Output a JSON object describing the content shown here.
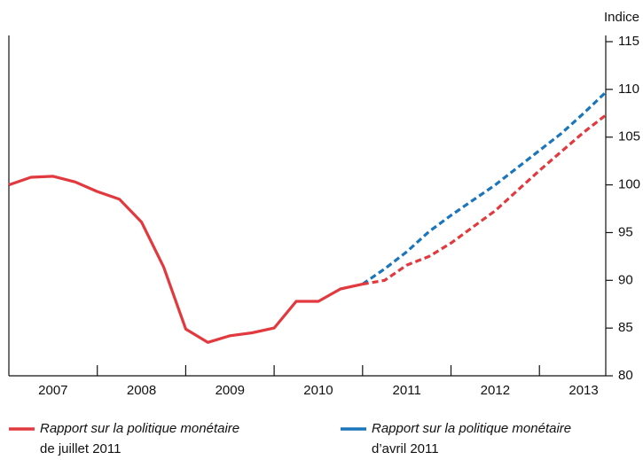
{
  "chart_data": {
    "type": "line",
    "y_axis_label": "Indice",
    "x": [
      2007,
      2007.25,
      2007.5,
      2007.75,
      2008,
      2008.25,
      2008.5,
      2008.75,
      2009,
      2009.25,
      2009.5,
      2009.75,
      2010,
      2010.25,
      2010.5,
      2010.75,
      2011,
      2011.25,
      2011.5,
      2011.75,
      2012,
      2012.25,
      2012.5,
      2012.75,
      2013,
      2013.25,
      2013.5,
      2013.75
    ],
    "xlim": [
      2007,
      2013.75
    ],
    "xticks": [
      2008,
      2009,
      2010,
      2011,
      2012,
      2013
    ],
    "x_period_labels": [
      "2007",
      "2008",
      "2009",
      "2010",
      "2011",
      "2012",
      "2013"
    ],
    "ylim": [
      80,
      115
    ],
    "yticks": [
      80,
      85,
      90,
      95,
      100,
      105,
      110,
      115
    ],
    "y_axis_side": "right",
    "series": [
      {
        "name": {
          "publication": "Rapport sur la politique monétaire",
          "edition": "de juillet 2011"
        },
        "color": "#e1393e",
        "dashed_from": 2011,
        "values": [
          100,
          100.8,
          100.9,
          100.3,
          99.3,
          98.5,
          96.1,
          91.4,
          84.9,
          83.5,
          84.2,
          84.5,
          85.0,
          87.8,
          87.8,
          89.1,
          89.6,
          90.0,
          91.6,
          92.5,
          93.9,
          95.6,
          97.3,
          99.4,
          101.5,
          103.5,
          105.5,
          107.3
        ]
      },
      {
        "name": {
          "publication": "Rapport sur la politique monétaire",
          "edition": "d’avril 2011"
        },
        "color": "#1b75bb",
        "dashed_from": 2011,
        "values": [
          null,
          null,
          null,
          null,
          null,
          null,
          null,
          null,
          null,
          null,
          null,
          null,
          null,
          null,
          null,
          null,
          89.6,
          91.2,
          93.0,
          95.1,
          96.8,
          98.4,
          100.0,
          101.8,
          103.6,
          105.4,
          107.5,
          109.7
        ]
      }
    ]
  }
}
